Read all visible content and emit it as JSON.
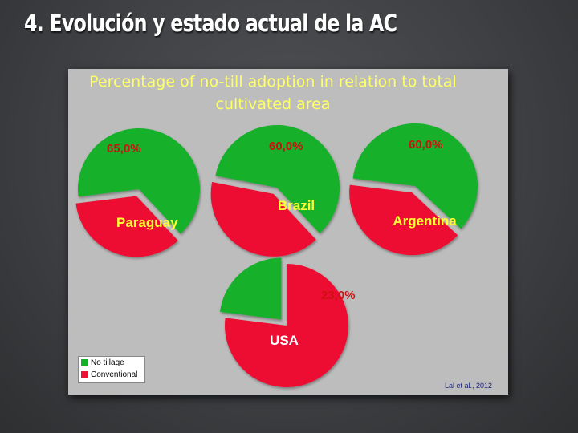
{
  "slide": {
    "title": "4.  Evolución y estado actual de la AC"
  },
  "colors": {
    "no_tillage": "#13b02a",
    "conventional": "#ee1133",
    "title_text": "#ffff66",
    "percent_text": "#cc1111",
    "country_text": "#ffff33",
    "usa_text": "#ffffff"
  },
  "legend": {
    "no_tillage": "No tillage",
    "conventional": "Conventional"
  },
  "citation": "Lal et al., 2012",
  "chart_data": {
    "type": "pie",
    "title": "Percentage of no-till adoption in relation to total cultivated area",
    "legend_entries": [
      "No tillage",
      "Conventional"
    ],
    "legend_position": "bottom-left",
    "pies": [
      {
        "country": "Paraguay",
        "no_tillage": 65.0,
        "conventional": 35.0,
        "percent_label": "65,0%"
      },
      {
        "country": "Brazil",
        "no_tillage": 60.0,
        "conventional": 40.0,
        "percent_label": "60,0%"
      },
      {
        "country": "Argentina",
        "no_tillage": 60.0,
        "conventional": 40.0,
        "percent_label": "60,0%"
      },
      {
        "country": "USA",
        "no_tillage": 23.0,
        "conventional": 77.0,
        "percent_label": "23,0%"
      }
    ]
  }
}
